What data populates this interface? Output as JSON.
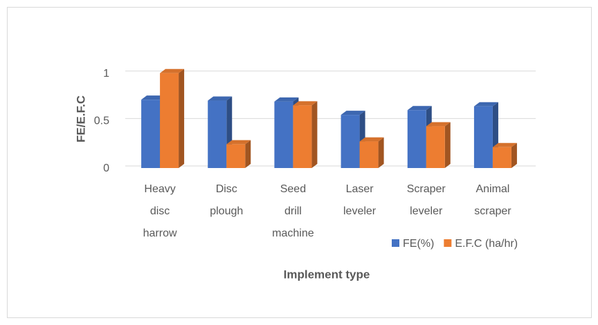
{
  "chart_data": {
    "type": "bar3d",
    "y_label": "FE/E.F.C",
    "x_label": "Implement type",
    "categories": [
      [
        "Heavy",
        "disc",
        "harrow"
      ],
      [
        "Disc",
        "plough"
      ],
      [
        "Seed",
        "drill",
        "machine"
      ],
      [
        "Laser",
        "leveler"
      ],
      [
        "Scraper",
        "leveler"
      ],
      [
        "Animal",
        "scraper"
      ]
    ],
    "series": [
      {
        "name": "FE(%)",
        "color": "#4472c4",
        "values": [
          0.72,
          0.71,
          0.7,
          0.56,
          0.61,
          0.65
        ]
      },
      {
        "name": "E.F.C (ha/hr)",
        "color": "#ed7d31",
        "values": [
          1.0,
          0.25,
          0.66,
          0.28,
          0.44,
          0.22
        ]
      }
    ],
    "ylim": [
      0,
      1.1
    ],
    "yticks": [
      0,
      0.5,
      1
    ],
    "grid": true,
    "legend": "bottom-right"
  }
}
